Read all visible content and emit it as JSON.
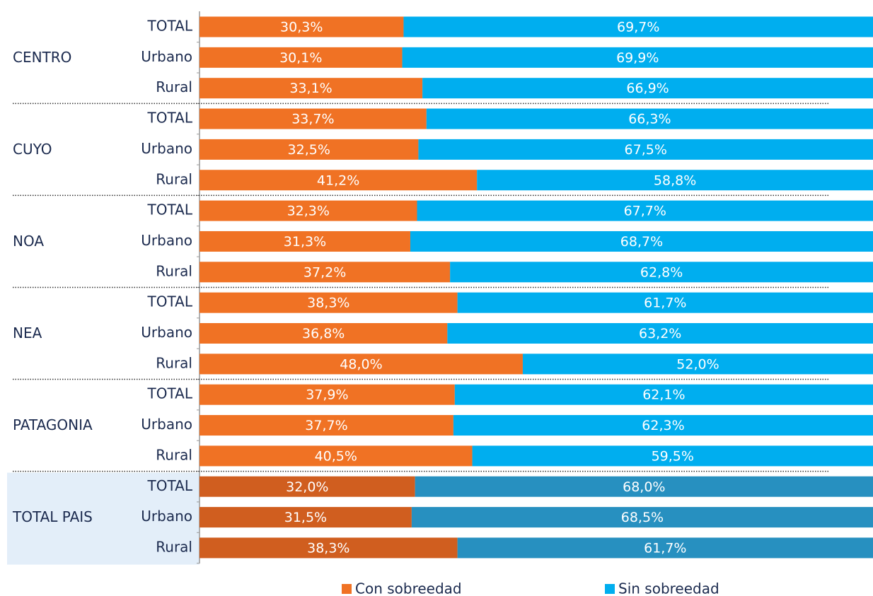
{
  "chart_data": {
    "type": "stacked_bar_horizontal",
    "groups": [
      "CENTRO",
      "CUYO",
      "NOA",
      "NEA",
      "PATAGONIA",
      "TOTAL PAIS"
    ],
    "categories": [
      "TOTAL",
      "Urbano",
      "Rural",
      "TOTAL",
      "Urbano",
      "Rural",
      "TOTAL",
      "Urbano",
      "Rural",
      "TOTAL",
      "Urbano",
      "Rural",
      "TOTAL",
      "Urbano",
      "Rural",
      "TOTAL",
      "Urbano",
      "Rural"
    ],
    "xlim": [
      0,
      100
    ],
    "highlight_group": "TOTAL PAIS",
    "series": [
      {
        "name": "Con sobreedad",
        "color": "#f07224",
        "highlight_color": "#d05e1f",
        "values": [
          30.3,
          30.1,
          33.1,
          33.7,
          32.5,
          41.2,
          32.3,
          31.3,
          37.2,
          38.3,
          36.8,
          48.0,
          37.9,
          37.7,
          40.5,
          32.0,
          31.5,
          38.3
        ],
        "value_labels": [
          "30,3%",
          "30,1%",
          "33,1%",
          "33,7%",
          "32,5%",
          "41,2%",
          "32,3%",
          "31,3%",
          "37,2%",
          "38,3%",
          "36,8%",
          "48,0%",
          "37,9%",
          "37,7%",
          "40,5%",
          "32,0%",
          "31,5%",
          "38,3%"
        ]
      },
      {
        "name": "Sin sobreedad",
        "color": "#00aeef",
        "highlight_color": "#2790c0",
        "values": [
          69.7,
          69.9,
          66.9,
          66.3,
          67.5,
          58.8,
          67.7,
          68.7,
          62.8,
          61.7,
          63.2,
          52.0,
          62.1,
          62.3,
          59.5,
          68.0,
          68.5,
          61.7
        ],
        "value_labels": [
          "69,7%",
          "69,9%",
          "66,9%",
          "66,3%",
          "67,5%",
          "58,8%",
          "67,7%",
          "68,7%",
          "62,8%",
          "61,7%",
          "63,2%",
          "52,0%",
          "62,1%",
          "62,3%",
          "59,5%",
          "68,0%",
          "68,5%",
          "61,7%"
        ]
      }
    ],
    "legend": "bottom"
  }
}
